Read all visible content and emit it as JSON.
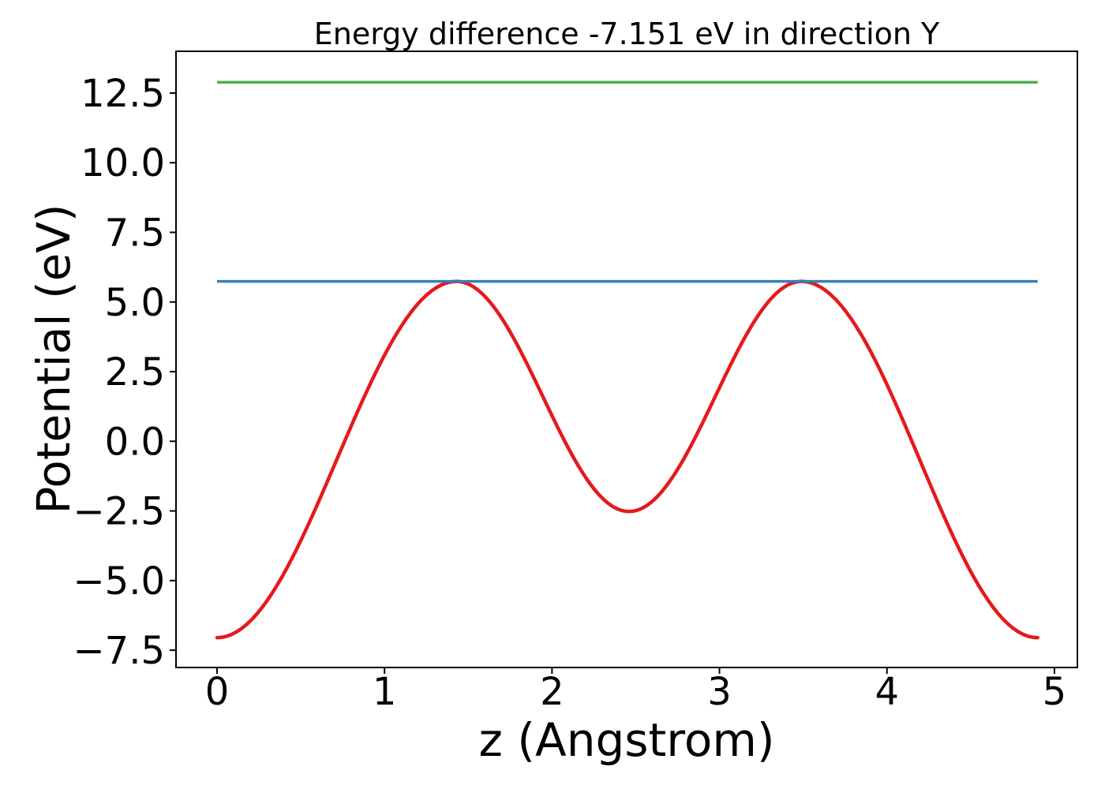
{
  "figure": {
    "background": "#ffffff",
    "text_color": "#000000",
    "spine_color": "#000000"
  },
  "chart_data": {
    "type": "line",
    "title": "Energy difference -7.151 eV in direction Y",
    "xlabel": "z (Angstrom)",
    "ylabel": "Potential (eV)",
    "grid": false,
    "legend": "none",
    "xlim": [
      -0.245,
      5.137
    ],
    "ylim": [
      -8.12,
      14.0
    ],
    "xticks": {
      "values": [
        0,
        1,
        2,
        3,
        4,
        5
      ],
      "labels": [
        "0",
        "1",
        "2",
        "3",
        "4",
        "5"
      ]
    },
    "yticks": {
      "values": [
        -7.5,
        -5.0,
        -2.5,
        0.0,
        2.5,
        5.0,
        7.5,
        10.0,
        12.5
      ],
      "labels": [
        "−7.5",
        "−5.0",
        "−2.5",
        "0.0",
        "2.5",
        "5.0",
        "7.5",
        "10.0",
        "12.5"
      ]
    },
    "energy_difference_eV": -7.151,
    "direction": "Y",
    "series": [
      {
        "name": "planar-averaged-potential",
        "kind": "curve",
        "color": "#e41a1c",
        "linewidth": 4.5,
        "interpolation": "cosine-between-extrema",
        "keypoints": [
          [
            0.0,
            -7.05
          ],
          [
            1.43,
            5.74
          ],
          [
            2.46,
            -2.52
          ],
          [
            3.49,
            5.74
          ],
          [
            4.9,
            -7.05
          ]
        ]
      },
      {
        "name": "energy-level-blue",
        "kind": "hline",
        "color": "#377eb8",
        "linewidth": 3.5,
        "y": 5.74,
        "x_start": 0.0,
        "x_end": 4.9
      },
      {
        "name": "energy-level-green",
        "kind": "hline",
        "color": "#4daf4a",
        "linewidth": 3.5,
        "y": 12.89,
        "x_start": 0.0,
        "x_end": 4.9
      }
    ]
  }
}
